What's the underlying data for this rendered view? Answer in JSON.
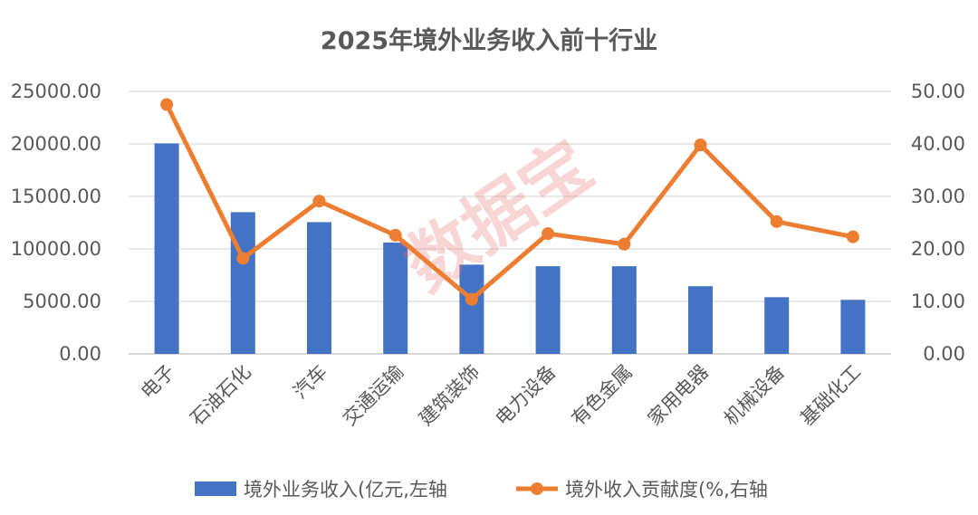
{
  "chart_data": {
    "type": "bar",
    "title": "2025年境外业务收入前十行业",
    "categories": [
      "电子",
      "石油石化",
      "汽车",
      "交通运输",
      "建筑装饰",
      "电力设备",
      "有色金属",
      "家用电器",
      "机械设备",
      "基础化工"
    ],
    "series": [
      {
        "name": "境外业务收入(亿元,左轴",
        "type": "bar",
        "axis": "left",
        "color": "#4472c4",
        "values": [
          20050,
          13500,
          12550,
          10600,
          8500,
          8350,
          8350,
          6450,
          5400,
          5150
        ]
      },
      {
        "name": "境外收入贡献度(%,右轴",
        "type": "line",
        "axis": "right",
        "color": "#ed7d31",
        "values": [
          47.5,
          18.2,
          29.1,
          22.6,
          10.4,
          22.9,
          20.9,
          39.8,
          25.2,
          22.3
        ]
      }
    ],
    "y_left": {
      "ylim": [
        0,
        25000
      ],
      "ticks": [
        "0.00",
        "5000.00",
        "10000.00",
        "15000.00",
        "20000.00",
        "25000.00"
      ]
    },
    "y_right": {
      "ylim": [
        0,
        50
      ],
      "ticks": [
        "0.00",
        "10.00",
        "20.00",
        "30.00",
        "40.00",
        "50.00"
      ]
    },
    "grid": true,
    "legend_position": "bottom",
    "watermark": "数据宝"
  }
}
